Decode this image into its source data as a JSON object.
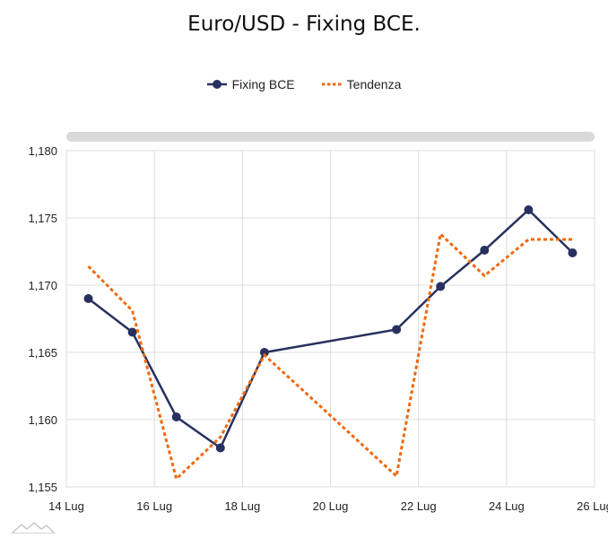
{
  "chart_data": {
    "type": "line",
    "title": "Euro/USD - Fixing BCE.",
    "legend": {
      "placement": "top-center"
    },
    "x_ticks": [
      "14 Lug",
      "16 Lug",
      "18 Lug",
      "20 Lug",
      "22 Lug",
      "24 Lug",
      "26 Lug"
    ],
    "y_ticks": [
      "1,155",
      "1,160",
      "1,165",
      "1,170",
      "1,175",
      "1,180"
    ],
    "xlim": [
      "2025-07-14",
      "2025-07-26"
    ],
    "ylim": [
      1.155,
      1.18
    ],
    "grid": true,
    "series": [
      {
        "name": "Fixing BCE",
        "style": "solid-markers",
        "color": "#27305f",
        "x": [
          "2025-07-14",
          "2025-07-15",
          "2025-07-16",
          "2025-07-17",
          "2025-07-18",
          "2025-07-21",
          "2025-07-22",
          "2025-07-23",
          "2025-07-24",
          "2025-07-25"
        ],
        "values": [
          1.169,
          1.1665,
          1.1602,
          1.1579,
          1.165,
          1.1667,
          1.1699,
          1.1726,
          1.1756,
          1.1724
        ]
      },
      {
        "name": "Tendenza",
        "style": "dotted",
        "color": "#ee6a10",
        "x": [
          "2025-07-14",
          "2025-07-15",
          "2025-07-16",
          "2025-07-17",
          "2025-07-18",
          "2025-07-21",
          "2025-07-22",
          "2025-07-23",
          "2025-07-24",
          "2025-07-25"
        ],
        "values": [
          1.1714,
          1.1681,
          1.1556,
          1.1587,
          1.1648,
          1.1558,
          1.1738,
          1.1707,
          1.1734,
          1.1734
        ]
      }
    ]
  }
}
